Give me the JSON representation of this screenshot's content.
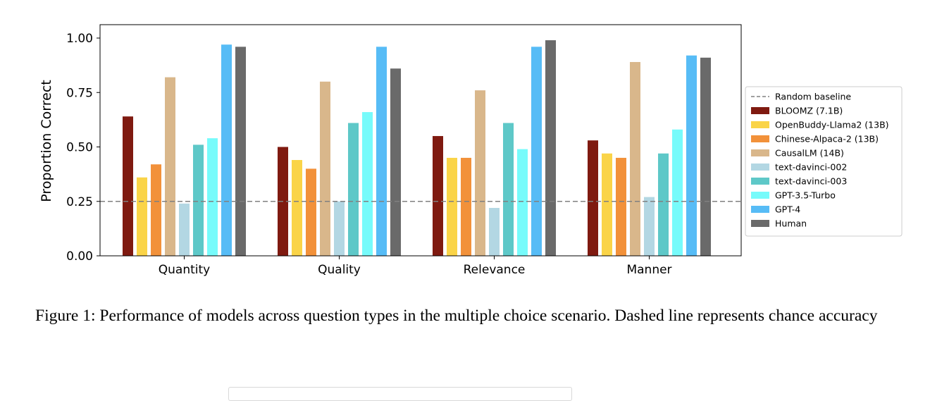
{
  "chart_data": {
    "type": "bar",
    "title": "",
    "xlabel": "",
    "ylabel": "Proportion Correct",
    "ylim": [
      0.0,
      1.0
    ],
    "yticks": [
      "0.00",
      "0.25",
      "0.50",
      "0.75",
      "1.00"
    ],
    "categories": [
      "Quantity",
      "Quality",
      "Relevance",
      "Manner"
    ],
    "baseline": {
      "name": "Random baseline",
      "value": 0.25,
      "color": "#808080",
      "style": "dashed"
    },
    "legend_position": "right",
    "grid": false,
    "series": [
      {
        "name": "BLOOMZ (7.1B)",
        "color": "#7f1a10",
        "values": [
          0.64,
          0.5,
          0.55,
          0.53
        ]
      },
      {
        "name": "OpenBuddy-Llama2 (13B)",
        "color": "#fad448",
        "values": [
          0.36,
          0.44,
          0.45,
          0.47
        ]
      },
      {
        "name": "Chinese-Alpaca-2 (13B)",
        "color": "#f2913a",
        "values": [
          0.42,
          0.4,
          0.45,
          0.45
        ]
      },
      {
        "name": "CausalLM (14B)",
        "color": "#d9b78b",
        "values": [
          0.82,
          0.8,
          0.76,
          0.89
        ]
      },
      {
        "name": "text-davinci-002",
        "color": "#b3d7e3",
        "values": [
          0.24,
          0.25,
          0.22,
          0.27
        ]
      },
      {
        "name": "text-davinci-003",
        "color": "#5ec8c8",
        "values": [
          0.51,
          0.61,
          0.61,
          0.47
        ]
      },
      {
        "name": "GPT-3.5-Turbo",
        "color": "#77fbfb",
        "values": [
          0.54,
          0.66,
          0.49,
          0.58
        ]
      },
      {
        "name": "GPT-4",
        "color": "#57bcf6",
        "values": [
          0.97,
          0.96,
          0.96,
          0.92
        ]
      },
      {
        "name": "Human",
        "color": "#6a6a6a",
        "values": [
          0.96,
          0.86,
          0.99,
          0.91
        ]
      }
    ]
  },
  "caption": "Figure 1: Performance of models across question types in the multiple choice scenario. Dashed line represents chance accuracy"
}
